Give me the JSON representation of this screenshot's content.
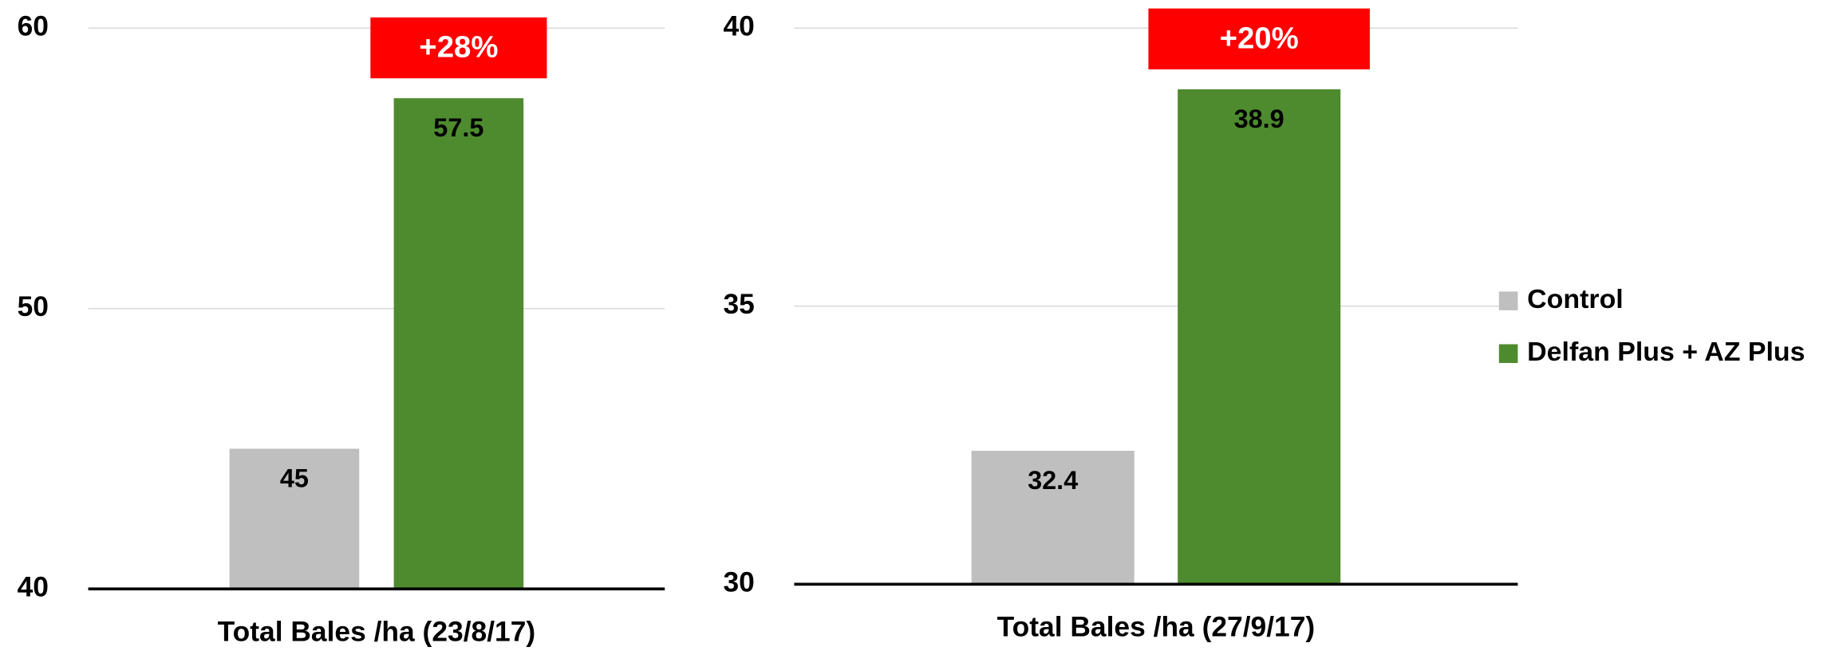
{
  "chart_data": [
    {
      "type": "bar",
      "categories": [
        "Total Bales /ha (23/8/17)"
      ],
      "series": [
        {
          "name": "Control",
          "color": "#bfbfbf",
          "values": [
            45
          ]
        },
        {
          "name": "Delfan Plus + AZ Plus",
          "color": "#4e8b2e",
          "values": [
            57.5
          ]
        }
      ],
      "annotation": "+28%",
      "annotation_color": "#ff0000",
      "ylim": [
        40,
        60
      ],
      "yticks": [
        40,
        50,
        60
      ],
      "grid": true
    },
    {
      "type": "bar",
      "categories": [
        "Total Bales /ha (27/9/17)"
      ],
      "series": [
        {
          "name": "Control",
          "color": "#bfbfbf",
          "values": [
            32.4
          ]
        },
        {
          "name": "Delfan Plus + AZ Plus",
          "color": "#4e8b2e",
          "values": [
            38.9
          ]
        }
      ],
      "annotation": "+20%",
      "annotation_color": "#ff0000",
      "ylim": [
        30,
        40
      ],
      "yticks": [
        30,
        35,
        40
      ],
      "grid": true,
      "legend": "right"
    }
  ]
}
